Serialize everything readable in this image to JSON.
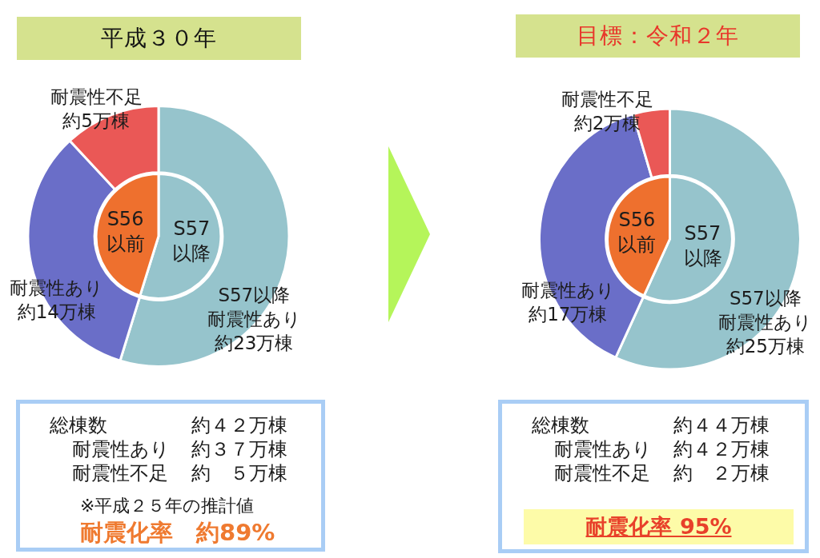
{
  "chart_data": [
    {
      "type": "donut",
      "title": "平成３０年",
      "categories": [
        "S57以降耐震性あり",
        "耐震性あり",
        "耐震性不足"
      ],
      "values": [
        23,
        14,
        5
      ],
      "value_labels": [
        "約23万棟",
        "約14万棟",
        "約5万棟"
      ],
      "colors": [
        "#96c4cc",
        "#6a6ec8",
        "#ea5856"
      ],
      "annotations": [
        "総棟数 約４２万棟",
        "耐震性あり 約３７万棟",
        "耐震性不足 約　５万棟",
        "※平成２５年の推計値",
        "耐震化率　約89%"
      ]
    },
    {
      "type": "pie",
      "categories": [
        "S57以降",
        "S56以前"
      ],
      "values": [
        54.8,
        45.2
      ],
      "colors": [
        "#96c4cc",
        "#ee702e"
      ]
    },
    {
      "type": "donut",
      "title": "目標：令和２年",
      "categories": [
        "S57以降耐震性あり",
        "耐震性あり",
        "耐震性不足"
      ],
      "values": [
        25,
        17,
        2
      ],
      "value_labels": [
        "約25万棟",
        "約17万棟",
        "約2万棟"
      ],
      "colors": [
        "#96c4cc",
        "#6a6ec8",
        "#ea5856"
      ],
      "annotations": [
        "総棟数 約４４万棟",
        "耐震性あり 約４２万棟",
        "耐震性不足 約　２万棟",
        "耐震化率 95%"
      ]
    },
    {
      "type": "pie",
      "categories": [
        "S57以降",
        "S56以前"
      ],
      "values": [
        56.8,
        43.2
      ],
      "colors": [
        "#96c4cc",
        "#ee702e"
      ]
    }
  ]
}
